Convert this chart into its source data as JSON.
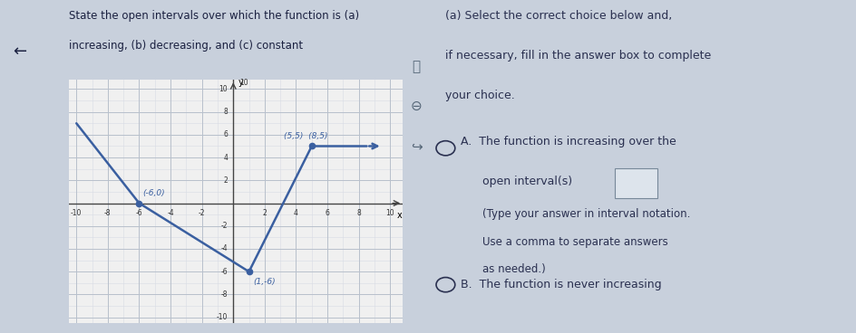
{
  "title_left_line1": "State the open intervals over which the function is (a)",
  "title_left_line2": "increasing, (b) decreasing, and (c) constant",
  "instruction_title": "(a) Select the correct choice below and,\nif necessary, fill in the answer box to complete\nyour choice.",
  "option_a_text1": "A.  The function is increasing over the",
  "option_a_text2": "open interval(s)",
  "option_a_text3": "(Type your answer in interval notation.\nUse a comma to separate answers\nas needed.)",
  "option_b_text": "B.  The function is never increasing",
  "graph_points": [
    [
      -10,
      7
    ],
    [
      -6,
      0
    ],
    [
      1,
      -6
    ],
    [
      5,
      5
    ],
    [
      8.5,
      5
    ]
  ],
  "dot_points": [
    [
      -6,
      0
    ],
    [
      1,
      -6
    ],
    [
      5,
      5
    ]
  ],
  "label_m6_0": "(-6,0)",
  "label_1_m6": "(1,-6)",
  "label_55_85": "(5,5)  (8,5)",
  "line_color": "#3a5fa0",
  "dot_color": "#3a5fa0",
  "line_width": 1.8,
  "grid_color": "#b8c0cc",
  "grid_minor_color": "#d8dce4",
  "axis_color": "#444444",
  "xlim": [
    -10.5,
    10.8
  ],
  "ylim": [
    -10.5,
    10.8
  ],
  "xtick_labels": [
    "-10",
    "-8",
    "-6",
    "-4",
    "-2",
    "2",
    "4",
    "6",
    "8",
    "10"
  ],
  "xtick_vals": [
    -10,
    -8,
    -6,
    -4,
    -2,
    2,
    4,
    6,
    8,
    10
  ],
  "ytick_labels": [
    "-10",
    "-8",
    "-6",
    "-4",
    "-2",
    "2",
    "4",
    "6",
    "8",
    "10"
  ],
  "ytick_vals": [
    -10,
    -8,
    -6,
    -4,
    -2,
    2,
    4,
    6,
    8,
    10
  ],
  "fig_bg": "#c8d0dc",
  "page_bg": "#e8ecf0",
  "plot_bg": "#f0f0f0",
  "font_color_header": "#1a2040",
  "font_color_body": "#2a3050",
  "divider_color": "#8899aa"
}
